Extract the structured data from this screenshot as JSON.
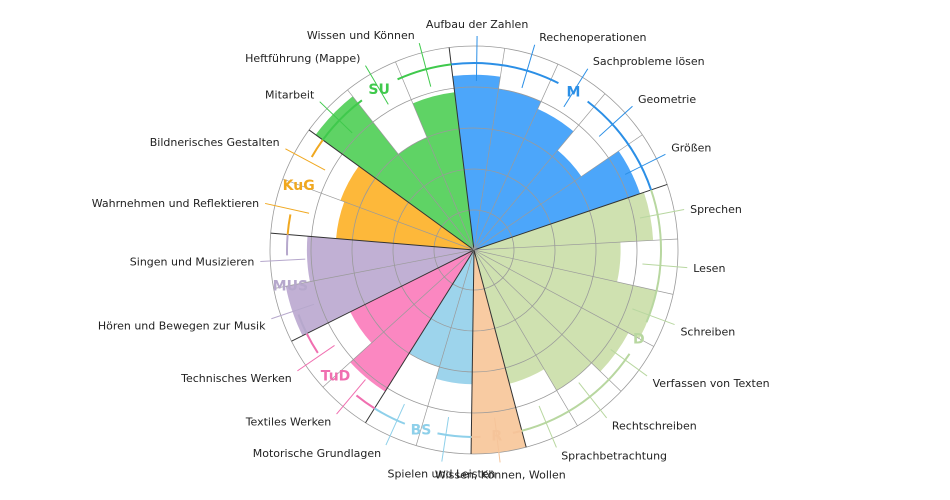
{
  "chart_data": {
    "type": "polar-bar",
    "max": 4,
    "rings": [
      1,
      2,
      3,
      4
    ],
    "groups": [
      {
        "code": "M",
        "color": "#2b8fe6",
        "fill": "#4ca6fa",
        "items": [
          [
            "Aufbau der Zahlen",
            3.3
          ],
          [
            "Rechenoperationen",
            3.0
          ],
          [
            "Sachprobleme lösen",
            2.8
          ],
          [
            "Geometrie",
            2.2
          ],
          [
            "Größen",
            3.3
          ]
        ]
      },
      {
        "code": "D",
        "color": "#b8d7a0",
        "fill": "#cfe1b0",
        "items": [
          [
            "Sprechen",
            3.4
          ],
          [
            "Lesen",
            2.6
          ],
          [
            "Schreiben",
            3.6
          ],
          [
            "Verfassen von Texten",
            3.3
          ],
          [
            "Rechtschreiben",
            3.0
          ],
          [
            "Sprachbetrachtung",
            2.4
          ]
        ]
      },
      {
        "code": "R",
        "color": "#f5c49a",
        "fill": "#f8cba2",
        "items": [
          [
            "Wissen, Können, Wollen",
            4.0
          ]
        ]
      },
      {
        "code": "BS",
        "color": "#8ed0ea",
        "fill": "#9dd4ec",
        "items": [
          [
            "Spielen und Leisten",
            2.3
          ],
          [
            "Motorische Grundlagen",
            2.0
          ]
        ]
      },
      {
        "code": "TuD",
        "color": "#f06fb0",
        "fill": "#fb87c1",
        "items": [
          [
            "Textiles Werken",
            3.1
          ],
          [
            "Technisches Werken",
            2.4
          ]
        ]
      },
      {
        "code": "MUS",
        "color": "#b6a8cc",
        "fill": "#c1b0d4",
        "items": [
          [
            "Hören und Bewegen zur Musik",
            3.7
          ],
          [
            "Singen und Musizieren",
            3.1
          ]
        ]
      },
      {
        "code": "KuG",
        "color": "#f0a820",
        "fill": "#fdb83a",
        "items": [
          [
            "Wahrnehmen und Reflektieren",
            2.4
          ],
          [
            "Bildnerisches Gestalten",
            2.5
          ]
        ]
      },
      {
        "code": "SU",
        "color": "#3fc94c",
        "fill": "#5fd365",
        "items": [
          [
            "Mitarbeit",
            3.8
          ],
          [
            "Heftführung (Mappe)",
            2.0
          ],
          [
            "Wissen und Können",
            2.9
          ]
        ]
      }
    ]
  }
}
